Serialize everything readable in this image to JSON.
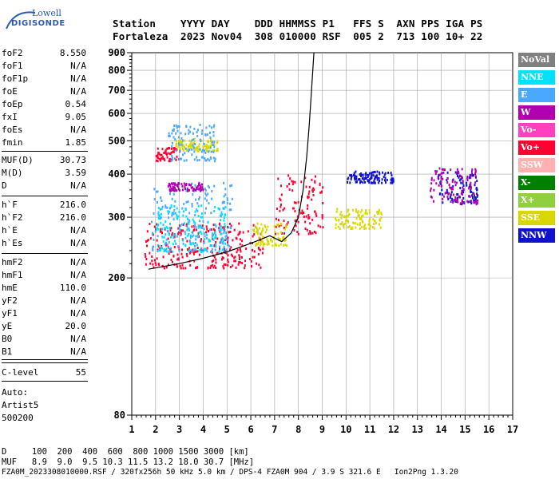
{
  "logo": {
    "line1": "Lowell",
    "line2": "DIGISONDE"
  },
  "header": {
    "line1": "Station    YYYY DAY    DDD HHMMSS P1   FFS S  AXN PPS IGA PS",
    "line2": "Fortaleza  2023 Nov04  308 010000 RSF  005 2  713 100 10+ 22"
  },
  "params": [
    {
      "k": "foF2",
      "v": "8.550"
    },
    {
      "k": "foF1",
      "v": "N/A"
    },
    {
      "k": "foF1p",
      "v": "N/A"
    },
    {
      "k": "foE",
      "v": "N/A"
    },
    {
      "k": "foEp",
      "v": "0.54"
    },
    {
      "k": "fxI",
      "v": "9.05"
    },
    {
      "k": "foEs",
      "v": "N/A"
    },
    {
      "k": "fmin",
      "v": "1.85"
    },
    {
      "k": "MUF(D)",
      "v": "30.73"
    },
    {
      "k": "M(D)",
      "v": "3.59"
    },
    {
      "k": "D",
      "v": "N/A"
    },
    {
      "k": "h`F",
      "v": "216.0"
    },
    {
      "k": "h`F2",
      "v": "216.0"
    },
    {
      "k": "h`E",
      "v": "N/A"
    },
    {
      "k": "h`Es",
      "v": "N/A"
    },
    {
      "k": "hmF2",
      "v": "N/A"
    },
    {
      "k": "hmF1",
      "v": "N/A"
    },
    {
      "k": "hmE",
      "v": "110.0"
    },
    {
      "k": "yF2",
      "v": "N/A"
    },
    {
      "k": "yF1",
      "v": "N/A"
    },
    {
      "k": "yE",
      "v": "20.0"
    },
    {
      "k": "B0",
      "v": "N/A"
    },
    {
      "k": "B1",
      "v": "N/A"
    }
  ],
  "clevel": {
    "k": "C-level",
    "v": "55"
  },
  "auto": {
    "l1": "Auto:",
    "l2": "Artist5",
    "l3": "500200"
  },
  "footer": {
    "line1": "D     100  200  400  600  800 1000 1500 3000 [km]",
    "line2": "MUF   8.9  9.0  9.5 10.3 11.5 13.2 18.0 30.7 [MHz]",
    "line3": "FZA0M_2023308010000.RSF / 320fx256h 50 kHz 5.0 km / DPS-4 FZA0M 904 / 3.9 S 321.6 E   Ion2Png 1.3.20"
  },
  "legend": [
    {
      "label": "NoVal",
      "color": "#808080"
    },
    {
      "label": "NNE",
      "color": "#00e0ff"
    },
    {
      "label": "E",
      "color": "#4aa8ff"
    },
    {
      "label": "W",
      "color": "#b000b0"
    },
    {
      "label": "Vo-",
      "color": "#ff40c0"
    },
    {
      "label": "Vo+",
      "color": "#ff0030"
    },
    {
      "label": "SSW",
      "color": "#ffb0b0"
    },
    {
      "label": "X-",
      "color": "#008000"
    },
    {
      "label": "X+",
      "color": "#90d040"
    },
    {
      "label": "SSE",
      "color": "#d8d800"
    },
    {
      "label": "NNW",
      "color": "#1010d0"
    }
  ],
  "chart_data": {
    "type": "scatter",
    "title": "",
    "xlabel": "",
    "ylabel": "",
    "xlim": [
      1,
      17
    ],
    "ylim": [
      80,
      900
    ],
    "yscale": "log",
    "xticks": [
      1,
      2,
      3,
      4,
      5,
      6,
      7,
      8,
      9,
      10,
      11,
      12,
      13,
      14,
      15,
      16,
      17
    ],
    "yticks": [
      80,
      200,
      300,
      400,
      500,
      600,
      700,
      800,
      900
    ],
    "grid": true,
    "legend_position": "right",
    "clusters": [
      {
        "polarization": "Vo+",
        "x_range": [
          1.5,
          6.5
        ],
        "y_range": [
          215,
          290
        ],
        "color": "#ff0030"
      },
      {
        "polarization": "E",
        "x_range": [
          1.8,
          5.2
        ],
        "y_range": [
          240,
          380
        ],
        "color": "#4aa8ff"
      },
      {
        "polarization": "NNE",
        "x_range": [
          2.0,
          5.0
        ],
        "y_range": [
          240,
          330
        ],
        "color": "#00e0ff"
      },
      {
        "polarization": "Vo+",
        "x_range": [
          7.0,
          9.0
        ],
        "y_range": [
          270,
          400
        ],
        "color": "#ff0030"
      },
      {
        "polarization": "SSE",
        "x_range": [
          6.0,
          7.5
        ],
        "y_range": [
          250,
          290
        ],
        "color": "#d8d800"
      },
      {
        "polarization": "SSE",
        "x_range": [
          9.5,
          11.5
        ],
        "y_range": [
          280,
          320
        ],
        "color": "#d8d800"
      },
      {
        "polarization": "SSE",
        "x_range": [
          2.8,
          4.6
        ],
        "y_range": [
          470,
          510
        ],
        "color": "#d8d800"
      },
      {
        "polarization": "Vo+",
        "x_range": [
          2.0,
          3.0
        ],
        "y_range": [
          440,
          480
        ],
        "color": "#ff0030"
      },
      {
        "polarization": "E",
        "x_range": [
          2.5,
          4.5
        ],
        "y_range": [
          440,
          560
        ],
        "color": "#4aa8ff"
      },
      {
        "polarization": "NNW",
        "x_range": [
          13.8,
          15.5
        ],
        "y_range": [
          330,
          410
        ],
        "color": "#1010d0"
      },
      {
        "polarization": "W",
        "x_range": [
          13.5,
          15.5
        ],
        "y_range": [
          330,
          420
        ],
        "color": "#b000b0"
      },
      {
        "polarization": "NNW",
        "x_range": [
          10.0,
          12.0
        ],
        "y_range": [
          380,
          410
        ],
        "color": "#1010d0"
      },
      {
        "polarization": "W",
        "x_range": [
          2.5,
          4.0
        ],
        "y_range": [
          360,
          380
        ],
        "color": "#b000b0"
      }
    ],
    "profile": {
      "label": "trace",
      "points": [
        [
          1.7,
          212
        ],
        [
          3,
          220
        ],
        [
          4,
          228
        ],
        [
          5,
          238
        ],
        [
          6,
          252
        ],
        [
          6.8,
          265
        ],
        [
          7.3,
          255
        ],
        [
          7.7,
          270
        ],
        [
          8.0,
          300
        ],
        [
          8.2,
          360
        ],
        [
          8.35,
          450
        ],
        [
          8.45,
          550
        ],
        [
          8.55,
          700
        ],
        [
          8.65,
          900
        ]
      ]
    }
  }
}
